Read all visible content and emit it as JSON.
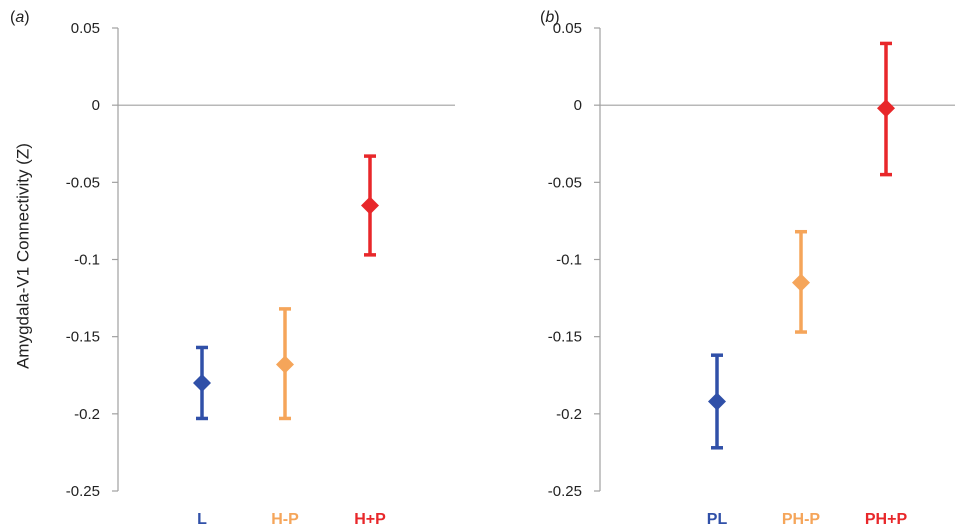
{
  "ylabel": "Amygdala-V1 Connectivity (Z)",
  "colors": {
    "blue": "#3050a8",
    "orange": "#f5a55a",
    "red": "#e8272a",
    "axis": "#a0a0a0"
  },
  "chart_data": [
    {
      "type": "scatter",
      "panel_label": "a",
      "ylabel": "Amygdala-V1 Connectivity (Z)",
      "ylim": [
        -0.25,
        0.05
      ],
      "yticks": [
        0.05,
        0,
        -0.05,
        -0.1,
        -0.15,
        -0.2,
        -0.25
      ],
      "ytick_labels": [
        "0.05",
        "0",
        "-0.05",
        "-0.1",
        "-0.15",
        "-0.2",
        "-0.25"
      ],
      "grid": false,
      "legend": "none",
      "categories": [
        "L",
        "H-P",
        "H+P"
      ],
      "values": [
        -0.18,
        -0.168,
        -0.065
      ],
      "error_low": [
        -0.203,
        -0.203,
        -0.097
      ],
      "error_high": [
        -0.157,
        -0.132,
        -0.033
      ],
      "point_colors": [
        "#3050a8",
        "#f5a55a",
        "#e8272a"
      ]
    },
    {
      "type": "scatter",
      "panel_label": "b",
      "ylabel": "",
      "ylim": [
        -0.25,
        0.05
      ],
      "yticks": [
        0.05,
        0,
        -0.05,
        -0.1,
        -0.15,
        -0.2,
        -0.25
      ],
      "ytick_labels": [
        "0.05",
        "0",
        "-0.05",
        "-0.1",
        "-0.15",
        "-0.2",
        "-0.25"
      ],
      "grid": false,
      "legend": "none",
      "categories": [
        "PL",
        "PH-P",
        "PH+P"
      ],
      "values": [
        -0.192,
        -0.115,
        -0.002
      ],
      "error_low": [
        -0.222,
        -0.147,
        -0.045
      ],
      "error_high": [
        -0.162,
        -0.082,
        0.04
      ],
      "point_colors": [
        "#3050a8",
        "#f5a55a",
        "#e8272a"
      ]
    }
  ]
}
